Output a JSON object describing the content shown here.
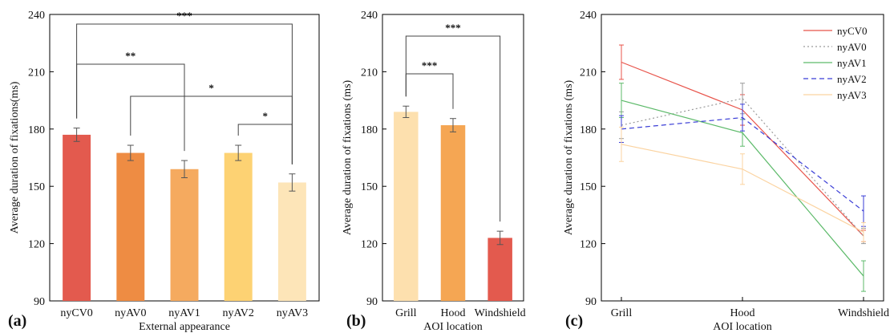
{
  "chart_data": [
    {
      "type": "bar",
      "panel_label": "(a)",
      "xlabel": "External appearance",
      "ylabel": "Average duration of fixations(ms)",
      "ylim": [
        90,
        240
      ],
      "yticks": [
        90,
        120,
        150,
        180,
        210,
        240
      ],
      "categories": [
        "nyCV0",
        "nyAV0",
        "nyAV1",
        "nyAV2",
        "nyAV3"
      ],
      "values": [
        177,
        167.5,
        159,
        167.5,
        152
      ],
      "errors": [
        3.5,
        4,
        4.5,
        4,
        4.5
      ],
      "colors": [
        "#E35A4E",
        "#EE8C43",
        "#F5AA5F",
        "#FDD273",
        "#FDE5B8"
      ],
      "significance": [
        {
          "from": 0,
          "to": 4,
          "label": "***"
        },
        {
          "from": 0,
          "to": 2,
          "label": "**"
        },
        {
          "from": 1,
          "to": 4,
          "label": "*"
        },
        {
          "from": 3,
          "to": 4,
          "label": "*"
        }
      ]
    },
    {
      "type": "bar",
      "panel_label": "(b)",
      "xlabel": "AOI location",
      "ylabel": "Average duration of fixations (ms)",
      "ylim": [
        90,
        240
      ],
      "yticks": [
        90,
        120,
        150,
        180,
        210,
        240
      ],
      "categories": [
        "Grill",
        "Hood",
        "Windshield"
      ],
      "values": [
        189,
        182,
        123
      ],
      "errors": [
        3,
        3.5,
        3.5
      ],
      "colors": [
        "#FDE0AE",
        "#F5A653",
        "#E35A4E"
      ],
      "significance": [
        {
          "from": 0,
          "to": 2,
          "label": "***"
        },
        {
          "from": 0,
          "to": 1,
          "label": "***"
        }
      ]
    },
    {
      "type": "line",
      "panel_label": "(c)",
      "xlabel": "AOI location",
      "ylabel": "Average duration of fixations (ms)",
      "ylim": [
        90,
        240
      ],
      "yticks": [
        90,
        120,
        150,
        180,
        210,
        240
      ],
      "categories": [
        "Grill",
        "Hood",
        "Windshield"
      ],
      "legend_position": "top-right",
      "series": [
        {
          "name": "nyCV0",
          "values": [
            215,
            190,
            124
          ],
          "errors": [
            9,
            8,
            3
          ],
          "color": "#E8544B",
          "dash": "solid"
        },
        {
          "name": "nyAV0",
          "values": [
            182,
            196,
            124
          ],
          "errors": [
            7,
            8,
            4
          ],
          "color": "#9A9A9A",
          "dash": "dotted"
        },
        {
          "name": "nyAV1",
          "values": [
            195,
            178,
            103
          ],
          "errors": [
            9,
            7,
            8
          ],
          "color": "#5DBA6A",
          "dash": "solid"
        },
        {
          "name": "nyAV2",
          "values": [
            180,
            186,
            137
          ],
          "errors": [
            7,
            7,
            8
          ],
          "color": "#3A3DD6",
          "dash": "dashed"
        },
        {
          "name": "nyAV3",
          "values": [
            172,
            159,
            126
          ],
          "errors": [
            9,
            8,
            5
          ],
          "color": "#FBD3A0",
          "dash": "solid"
        }
      ]
    }
  ]
}
